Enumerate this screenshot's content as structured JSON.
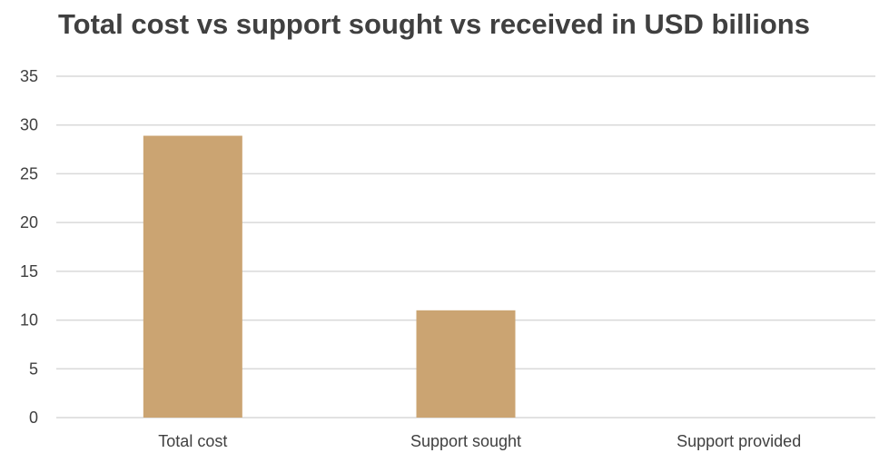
{
  "chart_data": {
    "type": "bar",
    "title": "Total cost vs support sought vs received in USD billions",
    "categories": [
      "Total cost",
      "Support sought",
      "Support provided"
    ],
    "values": [
      28.9,
      11,
      0
    ],
    "xlabel": "",
    "ylabel": "",
    "ylim": [
      0,
      35
    ],
    "yticks": [
      "0",
      "5",
      "10",
      "15",
      "20",
      "25",
      "30",
      "35"
    ],
    "grid": true,
    "legend": "none",
    "colors": {
      "bar": "#CBA472",
      "grid": "#D9D9D9",
      "text": "#404040"
    }
  }
}
